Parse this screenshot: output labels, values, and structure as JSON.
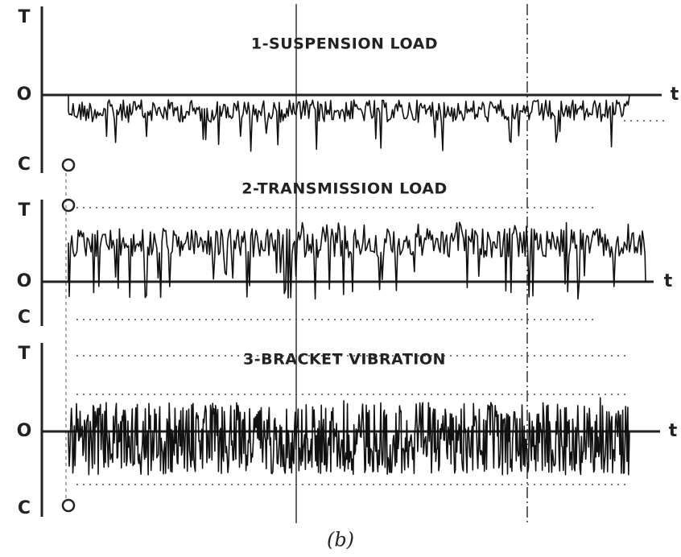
{
  "panels": [
    {
      "title": "1-SUSPENSION LOAD",
      "top": "T",
      "zero": "O",
      "bottom": "C",
      "time": "t"
    },
    {
      "title": "2-TRANSMISSION LOAD",
      "top": "T",
      "zero": "O",
      "bottom": "C",
      "time": "t"
    },
    {
      "title": "3-BRACKET VIBRATION",
      "top": "T",
      "zero": "O",
      "bottom": "C",
      "time": "t"
    }
  ],
  "caption": "(b)"
}
